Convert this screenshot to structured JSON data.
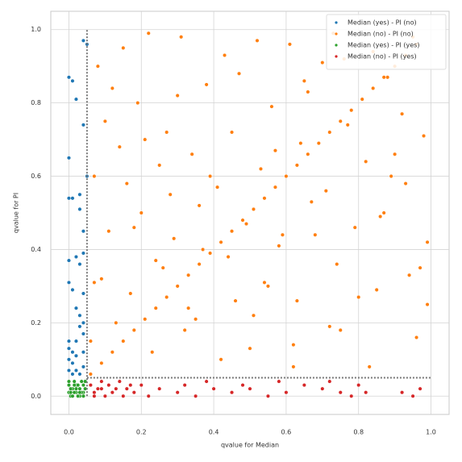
{
  "chart_data": {
    "type": "scatter",
    "xlabel": "qvalue for Median",
    "ylabel": "qvalue for PI",
    "xlim": [
      -0.05,
      1.05
    ],
    "ylim": [
      -0.05,
      1.05
    ],
    "xticks": [
      {
        "value": 0,
        "label": "0.0"
      },
      {
        "value": 0.2,
        "label": "0.2"
      },
      {
        "value": 0.4,
        "label": "0.4"
      },
      {
        "value": 0.6,
        "label": "0.6"
      },
      {
        "value": 0.8,
        "label": "0.8"
      },
      {
        "value": 1,
        "label": "1.0"
      }
    ],
    "yticks": [
      {
        "value": 0,
        "label": "0.0"
      },
      {
        "value": 0.2,
        "label": "0.2"
      },
      {
        "value": 0.4,
        "label": "0.4"
      },
      {
        "value": 0.6,
        "label": "0.6"
      },
      {
        "value": 0.8,
        "label": "0.8"
      },
      {
        "value": 1,
        "label": "1.0"
      }
    ],
    "grid": true,
    "legend": "upper right",
    "vlines": [
      0.05
    ],
    "hlines": [
      0.05
    ],
    "series": [
      {
        "name": "Median (yes) - PI (no)",
        "color": "#1f77b4",
        "x": [
          0.0,
          0.0,
          0.01,
          0.02,
          0.0,
          0.04,
          0.05,
          0.01,
          0.03,
          0.0,
          0.02,
          0.04,
          0.0,
          0.01,
          0.04,
          0.02,
          0.03,
          0.0,
          0.01,
          0.02,
          0.03,
          0.04,
          0.0,
          0.01,
          0.02,
          0.04,
          0.04,
          0.0,
          0.02,
          0.04,
          0.03,
          0.01,
          0.03,
          0.04,
          0.0,
          0.03,
          0.05,
          0.04
        ],
        "values": [
          0.87,
          0.65,
          0.86,
          0.81,
          0.54,
          0.97,
          0.96,
          0.54,
          0.51,
          0.37,
          0.38,
          0.39,
          0.31,
          0.29,
          0.45,
          0.24,
          0.22,
          0.15,
          0.12,
          0.11,
          0.19,
          0.2,
          0.1,
          0.09,
          0.15,
          0.17,
          0.28,
          0.07,
          0.07,
          0.08,
          0.06,
          0.06,
          0.55,
          0.74,
          0.13,
          0.36,
          0.6,
          0.12
        ]
      },
      {
        "name": "Median (no) - PI (no)",
        "color": "#ff7f0e",
        "x": [
          0.06,
          0.09,
          0.12,
          0.15,
          0.18,
          0.21,
          0.24,
          0.27,
          0.3,
          0.33,
          0.36,
          0.39,
          0.42,
          0.45,
          0.48,
          0.51,
          0.54,
          0.57,
          0.6,
          0.63,
          0.66,
          0.69,
          0.72,
          0.75,
          0.78,
          0.81,
          0.84,
          0.87,
          0.9,
          0.93,
          0.96,
          0.08,
          0.15,
          0.22,
          0.31,
          0.43,
          0.52,
          0.61,
          0.73,
          0.84,
          0.95,
          0.1,
          0.19,
          0.27,
          0.38,
          0.47,
          0.56,
          0.66,
          0.77,
          0.88,
          0.98,
          0.07,
          0.14,
          0.25,
          0.34,
          0.41,
          0.53,
          0.64,
          0.71,
          0.82,
          0.93,
          0.11,
          0.2,
          0.29,
          0.36,
          0.49,
          0.58,
          0.67,
          0.79,
          0.86,
          0.99,
          0.09,
          0.17,
          0.26,
          0.33,
          0.44,
          0.55,
          0.63,
          0.74,
          0.85,
          0.94,
          0.06,
          0.13,
          0.23,
          0.32,
          0.42,
          0.51,
          0.62,
          0.72,
          0.83,
          0.96,
          0.12,
          0.21,
          0.28,
          0.37,
          0.46,
          0.57,
          0.68,
          0.76,
          0.89,
          0.97,
          0.16,
          0.24,
          0.35,
          0.45,
          0.54,
          0.65,
          0.75,
          0.87,
          0.92,
          0.99,
          0.07,
          0.18,
          0.3,
          0.39,
          0.5,
          0.59,
          0.7,
          0.8,
          0.9,
          0.62
        ],
        "values": [
          0.06,
          0.09,
          0.12,
          0.15,
          0.18,
          0.21,
          0.24,
          0.27,
          0.3,
          0.33,
          0.36,
          0.39,
          0.42,
          0.45,
          0.48,
          0.51,
          0.54,
          0.57,
          0.6,
          0.63,
          0.66,
          0.69,
          0.72,
          0.75,
          0.78,
          0.81,
          0.84,
          0.87,
          0.9,
          0.93,
          0.96,
          0.9,
          0.95,
          0.99,
          0.98,
          0.93,
          0.97,
          0.96,
          0.99,
          0.94,
          0.98,
          0.75,
          0.8,
          0.72,
          0.85,
          0.88,
          0.79,
          0.83,
          0.74,
          0.87,
          0.71,
          0.6,
          0.68,
          0.63,
          0.66,
          0.57,
          0.62,
          0.69,
          0.56,
          0.64,
          0.58,
          0.45,
          0.5,
          0.43,
          0.52,
          0.47,
          0.41,
          0.53,
          0.46,
          0.49,
          0.42,
          0.32,
          0.28,
          0.35,
          0.24,
          0.38,
          0.3,
          0.26,
          0.36,
          0.29,
          0.33,
          0.15,
          0.2,
          0.12,
          0.18,
          0.1,
          0.22,
          0.14,
          0.19,
          0.08,
          0.16,
          0.84,
          0.7,
          0.55,
          0.4,
          0.26,
          0.67,
          0.44,
          0.92,
          0.6,
          0.35,
          0.58,
          0.37,
          0.21,
          0.72,
          0.31,
          0.86,
          0.18,
          0.5,
          0.77,
          0.25,
          0.31,
          0.46,
          0.82,
          0.6,
          0.13,
          0.44,
          0.91,
          0.27,
          0.66,
          0.08
        ]
      },
      {
        "name": "Median (yes) - PI (yes)",
        "color": "#2ca02c",
        "x": [
          0.0,
          0.01,
          0.02,
          0.03,
          0.04,
          0.0,
          0.01,
          0.02,
          0.03,
          0.04,
          0.005,
          0.015,
          0.025,
          0.035,
          0.045,
          0.005,
          0.015,
          0.025,
          0.035,
          0.045,
          0.0,
          0.01,
          0.02,
          0.03,
          0.04,
          0.005,
          0.015,
          0.025,
          0.035,
          0.045
        ],
        "values": [
          0.01,
          0.02,
          0.03,
          0.0,
          0.01,
          0.04,
          0.0,
          0.01,
          0.02,
          0.03,
          0.0,
          0.03,
          0.0,
          0.04,
          0.02,
          0.02,
          0.04,
          0.03,
          0.01,
          0.04,
          0.03,
          0.0,
          0.02,
          0.01,
          0.0,
          0.01,
          0.01,
          0.0,
          0.04,
          0.02
        ]
      },
      {
        "name": "Median (no) - PI (yes)",
        "color": "#d62728",
        "x": [
          0.06,
          0.07,
          0.08,
          0.09,
          0.1,
          0.11,
          0.12,
          0.13,
          0.14,
          0.15,
          0.16,
          0.18,
          0.2,
          0.22,
          0.25,
          0.3,
          0.32,
          0.35,
          0.38,
          0.4,
          0.45,
          0.48,
          0.5,
          0.55,
          0.58,
          0.6,
          0.65,
          0.7,
          0.72,
          0.75,
          0.78,
          0.8,
          0.82,
          0.92,
          0.95,
          0.97,
          0.07,
          0.09,
          0.12,
          0.17
        ],
        "values": [
          0.03,
          0.01,
          0.02,
          0.04,
          0.0,
          0.03,
          0.01,
          0.02,
          0.04,
          0.0,
          0.02,
          0.01,
          0.03,
          0.0,
          0.02,
          0.01,
          0.03,
          0.0,
          0.04,
          0.02,
          0.01,
          0.03,
          0.02,
          0.0,
          0.04,
          0.01,
          0.03,
          0.02,
          0.04,
          0.01,
          0.0,
          0.03,
          0.01,
          0.01,
          0.0,
          0.02,
          0.0,
          0.02,
          0.01,
          0.03
        ]
      }
    ]
  }
}
